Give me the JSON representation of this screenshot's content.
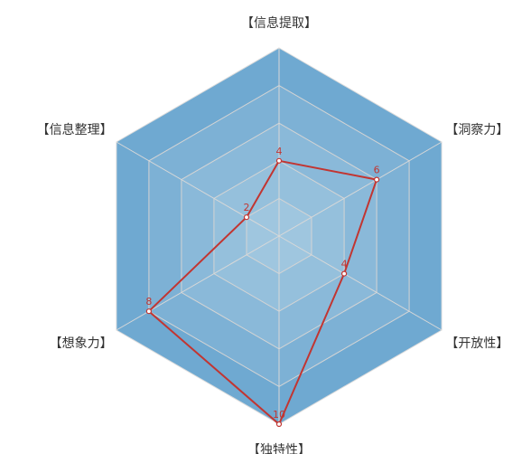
{
  "chart_data": {
    "type": "radar",
    "title": "",
    "indicators": [
      "【信息提取】",
      "【洞察力】",
      "【开放性】",
      "【独特性】",
      "【想象力】",
      "【信息整理】"
    ],
    "max": 10,
    "rings": 5,
    "series": [
      {
        "values": [
          4,
          6,
          4,
          10,
          8,
          2
        ]
      }
    ],
    "split_area_colors": [
      "#ffffff",
      "#ffffff",
      "#ffffff",
      "#ffffff",
      "#ffffff"
    ],
    "background_color": "#6fa9d1",
    "line_color": "#c23531",
    "label_color": "#c23531"
  }
}
